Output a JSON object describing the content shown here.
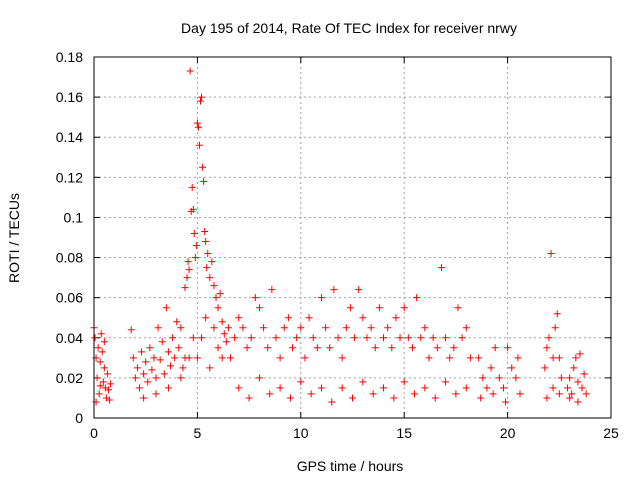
{
  "chart_data": {
    "type": "scatter",
    "title": "Day 195 of 2014, Rate Of TEC Index for receiver nrwy",
    "xlabel": "GPS time / hours",
    "ylabel": "ROTI / TECUs",
    "xlim": [
      0,
      25
    ],
    "ylim": [
      0,
      0.18
    ],
    "x_ticks": [
      0,
      5,
      10,
      15,
      20,
      25
    ],
    "x_tick_labels": [
      "0",
      "5",
      "10",
      "15",
      "20",
      "25"
    ],
    "y_ticks": [
      0,
      0.02,
      0.04,
      0.06,
      0.08,
      0.1,
      0.12,
      0.14,
      0.16,
      0.18
    ],
    "y_tick_labels": [
      "0",
      "0.02",
      "0.04",
      "0.06",
      "0.08",
      "0.1",
      "0.12",
      "0.14",
      "0.16",
      "0.18"
    ],
    "grid": true,
    "marker": "+",
    "color": "#ff0000",
    "series": [
      {
        "name": "ROTI",
        "points": [
          [
            0.0,
            0.045
          ],
          [
            0.05,
            0.04
          ],
          [
            0.1,
            0.03
          ],
          [
            0.15,
            0.02
          ],
          [
            0.2,
            0.035
          ],
          [
            0.25,
            0.012
          ],
          [
            0.3,
            0.028
          ],
          [
            0.35,
            0.042
          ],
          [
            0.4,
            0.033
          ],
          [
            0.45,
            0.018
          ],
          [
            0.5,
            0.025
          ],
          [
            0.55,
            0.015
          ],
          [
            0.6,
            0.01
          ],
          [
            0.65,
            0.022
          ],
          [
            0.7,
            0.014
          ],
          [
            0.75,
            0.009
          ],
          [
            0.8,
            0.017
          ],
          [
            0.1,
            0.008
          ],
          [
            0.3,
            0.016
          ],
          [
            0.5,
            0.038
          ],
          [
            1.8,
            0.044
          ],
          [
            1.9,
            0.03
          ],
          [
            2.0,
            0.02
          ],
          [
            2.1,
            0.025
          ],
          [
            2.2,
            0.015
          ],
          [
            2.3,
            0.033
          ],
          [
            2.4,
            0.022
          ],
          [
            2.5,
            0.028
          ],
          [
            2.6,
            0.018
          ],
          [
            2.7,
            0.035
          ],
          [
            2.8,
            0.024
          ],
          [
            2.9,
            0.03
          ],
          [
            3.0,
            0.02
          ],
          [
            3.1,
            0.045
          ],
          [
            3.2,
            0.029
          ],
          [
            3.3,
            0.038
          ],
          [
            3.4,
            0.022
          ],
          [
            3.5,
            0.055
          ],
          [
            3.6,
            0.033
          ],
          [
            3.7,
            0.026
          ],
          [
            3.8,
            0.04
          ],
          [
            3.9,
            0.03
          ],
          [
            4.0,
            0.048
          ],
          [
            4.1,
            0.035
          ],
          [
            4.2,
            0.045
          ],
          [
            4.3,
            0.025
          ],
          [
            4.4,
            0.065
          ],
          [
            4.5,
            0.07
          ],
          [
            4.55,
            0.078
          ],
          [
            4.6,
            0.074
          ],
          [
            4.65,
            0.173
          ],
          [
            4.7,
            0.103
          ],
          [
            4.75,
            0.115
          ],
          [
            4.8,
            0.104
          ],
          [
            4.85,
            0.092
          ],
          [
            4.9,
            0.08
          ],
          [
            4.95,
            0.086
          ],
          [
            5.0,
            0.147
          ],
          [
            5.05,
            0.145
          ],
          [
            5.1,
            0.136
          ],
          [
            5.15,
            0.158
          ],
          [
            5.2,
            0.16
          ],
          [
            5.25,
            0.125
          ],
          [
            5.3,
            0.118
          ],
          [
            5.35,
            0.093
          ],
          [
            5.4,
            0.088
          ],
          [
            5.45,
            0.075
          ],
          [
            5.5,
            0.082
          ],
          [
            5.6,
            0.07
          ],
          [
            5.7,
            0.078
          ],
          [
            5.8,
            0.066
          ],
          [
            5.9,
            0.06
          ],
          [
            6.0,
            0.055
          ],
          [
            6.1,
            0.062
          ],
          [
            6.2,
            0.048
          ],
          [
            6.3,
            0.042
          ],
          [
            6.4,
            0.038
          ],
          [
            6.5,
            0.045
          ],
          [
            5.0,
            0.03
          ],
          [
            5.2,
            0.04
          ],
          [
            5.4,
            0.05
          ],
          [
            5.6,
            0.025
          ],
          [
            5.8,
            0.045
          ],
          [
            6.0,
            0.035
          ],
          [
            6.2,
            0.03
          ],
          [
            4.6,
            0.03
          ],
          [
            4.8,
            0.04
          ],
          [
            4.4,
            0.03
          ],
          [
            4.2,
            0.02
          ],
          [
            3.6,
            0.015
          ],
          [
            3.0,
            0.012
          ],
          [
            2.4,
            0.01
          ],
          [
            6.6,
            0.03
          ],
          [
            6.8,
            0.04
          ],
          [
            7.0,
            0.05
          ],
          [
            7.2,
            0.045
          ],
          [
            7.4,
            0.035
          ],
          [
            7.6,
            0.04
          ],
          [
            7.8,
            0.06
          ],
          [
            8.0,
            0.055
          ],
          [
            8.2,
            0.045
          ],
          [
            8.4,
            0.035
          ],
          [
            8.6,
            0.064
          ],
          [
            8.8,
            0.04
          ],
          [
            9.0,
            0.03
          ],
          [
            9.2,
            0.045
          ],
          [
            9.4,
            0.05
          ],
          [
            9.6,
            0.035
          ],
          [
            9.8,
            0.04
          ],
          [
            10.0,
            0.045
          ],
          [
            10.2,
            0.03
          ],
          [
            10.4,
            0.05
          ],
          [
            10.6,
            0.04
          ],
          [
            10.8,
            0.035
          ],
          [
            11.0,
            0.06
          ],
          [
            11.2,
            0.045
          ],
          [
            11.4,
            0.035
          ],
          [
            11.6,
            0.064
          ],
          [
            11.8,
            0.04
          ],
          [
            12.0,
            0.03
          ],
          [
            12.2,
            0.045
          ],
          [
            12.4,
            0.055
          ],
          [
            12.6,
            0.04
          ],
          [
            12.8,
            0.064
          ],
          [
            13.0,
            0.05
          ],
          [
            13.2,
            0.04
          ],
          [
            13.4,
            0.045
          ],
          [
            13.6,
            0.035
          ],
          [
            13.8,
            0.055
          ],
          [
            14.0,
            0.04
          ],
          [
            14.2,
            0.045
          ],
          [
            14.4,
            0.035
          ],
          [
            14.6,
            0.05
          ],
          [
            14.8,
            0.04
          ],
          [
            15.0,
            0.055
          ],
          [
            15.2,
            0.04
          ],
          [
            15.4,
            0.035
          ],
          [
            15.6,
            0.06
          ],
          [
            15.8,
            0.04
          ],
          [
            16.0,
            0.045
          ],
          [
            16.2,
            0.03
          ],
          [
            16.4,
            0.04
          ],
          [
            16.6,
            0.035
          ],
          [
            16.8,
            0.075
          ],
          [
            17.0,
            0.04
          ],
          [
            17.2,
            0.03
          ],
          [
            17.4,
            0.035
          ],
          [
            17.6,
            0.055
          ],
          [
            17.8,
            0.04
          ],
          [
            18.0,
            0.045
          ],
          [
            18.2,
            0.03
          ],
          [
            7.0,
            0.015
          ],
          [
            7.5,
            0.01
          ],
          [
            8.0,
            0.02
          ],
          [
            8.5,
            0.012
          ],
          [
            9.0,
            0.015
          ],
          [
            9.5,
            0.01
          ],
          [
            10.0,
            0.018
          ],
          [
            10.5,
            0.012
          ],
          [
            11.0,
            0.015
          ],
          [
            11.5,
            0.008
          ],
          [
            12.0,
            0.015
          ],
          [
            12.5,
            0.01
          ],
          [
            13.0,
            0.018
          ],
          [
            13.5,
            0.012
          ],
          [
            14.0,
            0.015
          ],
          [
            14.5,
            0.01
          ],
          [
            15.0,
            0.018
          ],
          [
            15.5,
            0.012
          ],
          [
            16.0,
            0.015
          ],
          [
            16.5,
            0.01
          ],
          [
            17.0,
            0.018
          ],
          [
            17.5,
            0.012
          ],
          [
            18.0,
            0.015
          ],
          [
            18.6,
            0.03
          ],
          [
            18.8,
            0.02
          ],
          [
            19.0,
            0.015
          ],
          [
            19.2,
            0.025
          ],
          [
            19.4,
            0.035
          ],
          [
            19.6,
            0.02
          ],
          [
            19.8,
            0.015
          ],
          [
            20.0,
            0.035
          ],
          [
            20.2,
            0.025
          ],
          [
            20.4,
            0.02
          ],
          [
            20.6,
            0.012
          ],
          [
            18.7,
            0.01
          ],
          [
            19.3,
            0.012
          ],
          [
            19.9,
            0.008
          ],
          [
            20.5,
            0.03
          ],
          [
            21.8,
            0.025
          ],
          [
            21.9,
            0.035
          ],
          [
            22.0,
            0.04
          ],
          [
            22.1,
            0.082
          ],
          [
            22.2,
            0.03
          ],
          [
            22.3,
            0.045
          ],
          [
            22.4,
            0.052
          ],
          [
            22.5,
            0.03
          ],
          [
            22.6,
            0.02
          ],
          [
            21.9,
            0.01
          ],
          [
            22.2,
            0.015
          ],
          [
            22.5,
            0.012
          ],
          [
            22.9,
            0.015
          ],
          [
            23.0,
            0.02
          ],
          [
            23.1,
            0.012
          ],
          [
            23.2,
            0.025
          ],
          [
            23.3,
            0.03
          ],
          [
            23.4,
            0.018
          ],
          [
            23.5,
            0.032
          ],
          [
            23.6,
            0.015
          ],
          [
            23.7,
            0.022
          ],
          [
            23.8,
            0.012
          ],
          [
            23.0,
            0.01
          ],
          [
            23.4,
            0.008
          ]
        ]
      }
    ]
  }
}
